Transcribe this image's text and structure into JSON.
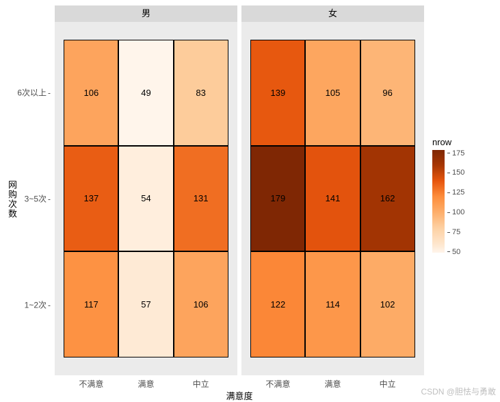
{
  "type": "heatmap",
  "facet_var": "性别",
  "facets": [
    "男",
    "女"
  ],
  "x_categories": [
    "不满意",
    "满意",
    "中立"
  ],
  "y_categories": [
    "1~2次",
    "3~5次",
    "6次以上"
  ],
  "x_title": "满意度",
  "y_title": "网购次数",
  "legend_title": "nrow",
  "value_range": [
    49,
    179
  ],
  "legend_ticks": [
    50,
    75,
    100,
    125,
    150,
    175
  ],
  "color_scale": {
    "low": "#fff5eb",
    "high": "#7f2704",
    "stops": [
      {
        "v": 49,
        "c": "#fff5eb"
      },
      {
        "v": 60,
        "c": "#fee6cd"
      },
      {
        "v": 80,
        "c": "#fdd1a4"
      },
      {
        "v": 100,
        "c": "#fdae6b"
      },
      {
        "v": 120,
        "c": "#fd8d3c"
      },
      {
        "v": 140,
        "c": "#e6550d"
      },
      {
        "v": 160,
        "c": "#a63603"
      },
      {
        "v": 179,
        "c": "#7f2704"
      }
    ]
  },
  "panel_background": "#ebebeb",
  "strip_background": "#d9d9d9",
  "cell_border_color": "#000000",
  "text_color": "#000000",
  "tick_color": "#4d4d4d",
  "data": {
    "男": {
      "6次以上": {
        "不满意": 106,
        "满意": 49,
        "中立": 83
      },
      "3~5次": {
        "不满意": 137,
        "满意": 54,
        "中立": 131
      },
      "1~2次": {
        "不满意": 117,
        "满意": 57,
        "中立": 106
      }
    },
    "女": {
      "6次以上": {
        "不满意": 139,
        "满意": 105,
        "中立": 96
      },
      "3~5次": {
        "不满意": 179,
        "满意": 141,
        "中立": 162
      },
      "1~2次": {
        "不满意": 122,
        "满意": 114,
        "中立": 102
      }
    }
  },
  "title_fontsize": 13,
  "tick_fontsize": 12,
  "cell_fontsize": 13,
  "watermark": "CSDN @胆怯与勇敢",
  "watermark_color": "#bfbfbf"
}
